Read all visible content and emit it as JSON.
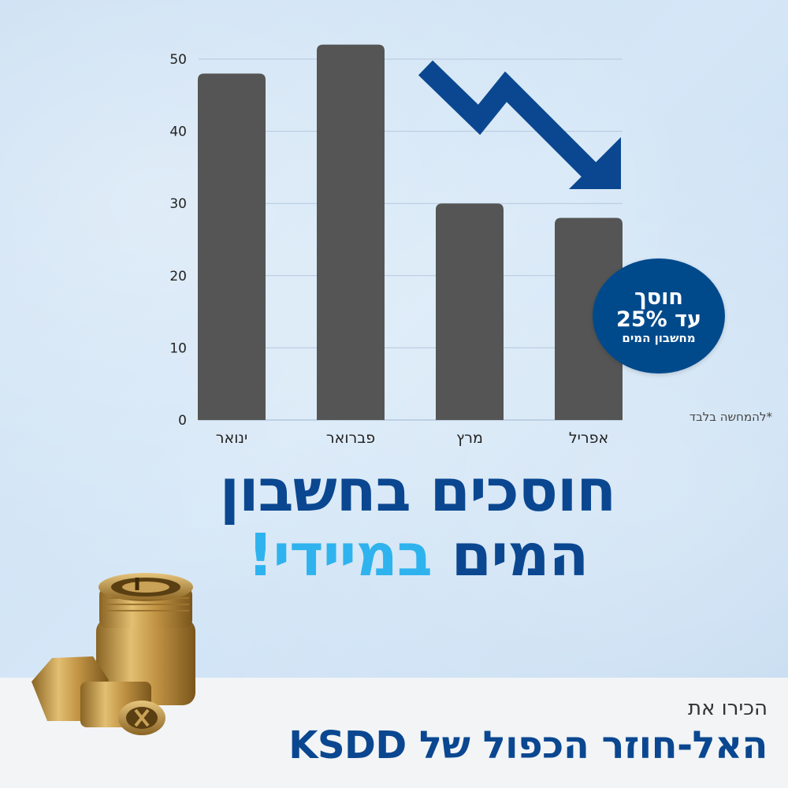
{
  "chart_data": {
    "type": "bar",
    "categories": [
      "ינואר",
      "פברואר",
      "מרץ",
      "אפריל"
    ],
    "values": [
      48,
      52,
      30,
      28
    ],
    "ylim": [
      0,
      50
    ],
    "yticks": [
      0,
      10,
      20,
      30,
      40,
      50
    ],
    "grid": true,
    "bar_color": "#555555",
    "title": "",
    "xlabel": "",
    "ylabel": ""
  },
  "badge": {
    "line1": "חוסך",
    "line2": "עד 25%",
    "line3": "מחשבון המים",
    "color": "#004a8c"
  },
  "footnote": "*להמחשה בלבד",
  "headline": {
    "line1": "חוסכים בחשבון",
    "line2_main": "המים",
    "line2_accent": "במיידי!",
    "color": "#0a4790",
    "accent_color": "#2fb3ee"
  },
  "product": {
    "intro": "הכירו את",
    "title": "האל-חוזר הכפול של KSDD"
  },
  "arrow_color": "#0a4790"
}
